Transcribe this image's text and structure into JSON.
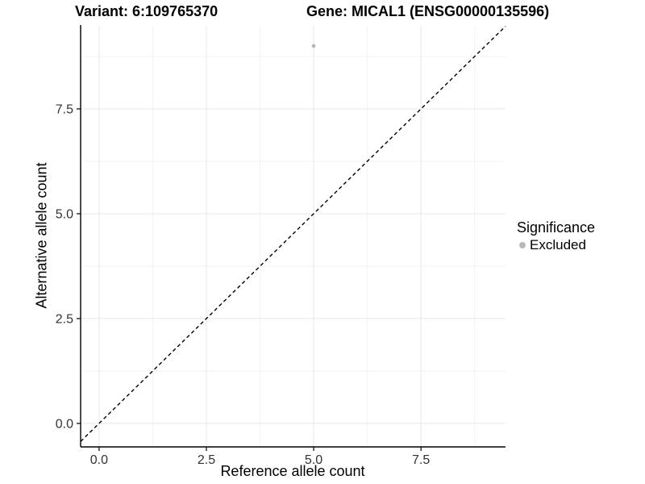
{
  "titles": {
    "variant": "Variant: 6:109765370",
    "gene": "Gene: MICAL1 (ENSG00000135596)"
  },
  "chart_data": {
    "type": "scatter",
    "xlabel": "Reference allele count",
    "ylabel": "Alternative allele count",
    "x_ticks": [
      0,
      2.5,
      5,
      7.5
    ],
    "x_tick_labels": [
      "0.0",
      "2.5",
      "5.0",
      "7.5"
    ],
    "y_ticks": [
      0,
      2.5,
      5,
      7.5
    ],
    "y_tick_labels": [
      "0.0",
      "2.5",
      "5.0",
      "7.5"
    ],
    "x_minor_ticks": [
      1.25,
      3.75,
      6.25,
      8.75
    ],
    "y_minor_ticks": [
      1.25,
      3.75,
      6.25,
      8.75
    ],
    "xlim": [
      -0.43,
      9.47
    ],
    "ylim": [
      -0.56,
      9.5
    ],
    "grid": "major+minor",
    "points": [
      {
        "x": 5,
        "y": 9,
        "significance": "Excluded",
        "color": "#b8b8b8",
        "radius": 2.4
      }
    ],
    "identity_line": {
      "kind": "y=x",
      "style": "dashed",
      "color": "#000000"
    },
    "legend": {
      "title": "Significance",
      "position": "right",
      "items": [
        {
          "label": "Excluded",
          "color": "#b8b8b8"
        }
      ]
    },
    "colors": {
      "background": "#ffffff",
      "grid_major": "#e8e8e8",
      "grid_minor": "#f3f3f3",
      "axis_line": "#000000",
      "tick_text": "#333333"
    }
  }
}
